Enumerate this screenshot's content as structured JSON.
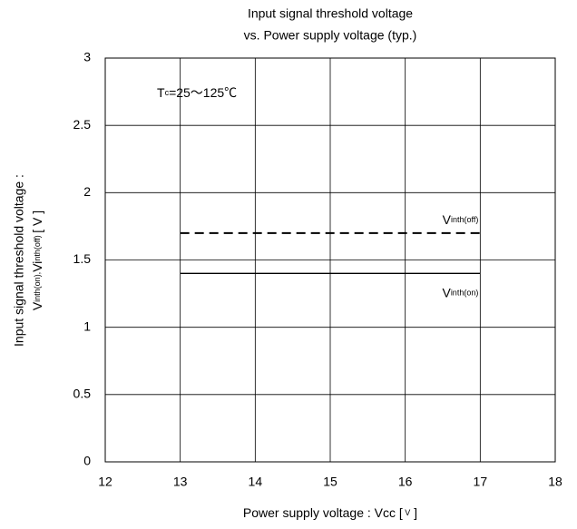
{
  "chart_data": {
    "type": "line",
    "title": [
      "Input signal threshold voltage",
      "vs. Power supply voltage (typ.)"
    ],
    "x_label": "Power supply voltage  :  Vcc [ V ]",
    "y_label": [
      "Input signal threshold voltage :",
      "Vinth(on),Vinth(off) [ V ]"
    ],
    "annotation": "Tc=25～125℃",
    "xlim": [
      12,
      18
    ],
    "xticks": [
      12,
      13,
      14,
      15,
      16,
      17,
      18
    ],
    "ylim": [
      0,
      3
    ],
    "yticks": [
      0,
      {
        "value": 0.5,
        "label": "0.5"
      },
      1,
      {
        "value": 1.5,
        "label": "1.5"
      },
      2,
      {
        "value": 2.5,
        "label": "2.5"
      },
      3
    ],
    "grid": true,
    "series": [
      {
        "name": "Vinth(off)",
        "color": "#000000",
        "linestyle": "dashed",
        "x": [
          13,
          17
        ],
        "values": [
          1.7,
          1.7
        ]
      },
      {
        "name": "Vinth(on)",
        "color": "#000000",
        "linestyle": "solid",
        "x": [
          13,
          17
        ],
        "values": [
          1.4,
          1.4
        ]
      }
    ]
  }
}
